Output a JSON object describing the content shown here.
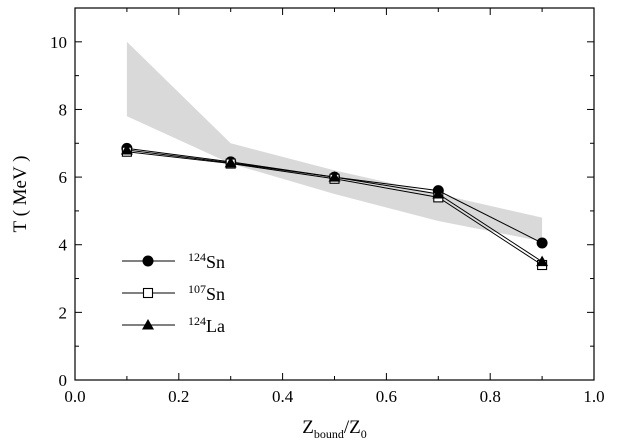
{
  "chart_data": {
    "type": "line",
    "xlabel_main": "Z",
    "xlabel_sub1": "bound",
    "xlabel_mid": "/Z",
    "xlabel_sub2": "0",
    "ylabel": "T ( MeV )",
    "xlim": [
      0.0,
      1.0
    ],
    "ylim": [
      0,
      11
    ],
    "xticks": [
      0.0,
      0.2,
      0.4,
      0.6,
      0.8,
      1.0
    ],
    "xtick_labels": [
      "0.0",
      "0.2",
      "0.4",
      "0.6",
      "0.8",
      "1.0"
    ],
    "yticks": [
      0,
      2,
      4,
      6,
      8,
      10
    ],
    "ytick_labels": [
      "0",
      "2",
      "4",
      "6",
      "8",
      "10"
    ],
    "x": [
      0.1,
      0.3,
      0.5,
      0.7,
      0.9
    ],
    "series": [
      {
        "name_sup": "124",
        "name_main": "Sn",
        "marker": "circle-filled",
        "values": [
          6.85,
          6.45,
          6.0,
          5.6,
          4.05
        ]
      },
      {
        "name_sup": "107",
        "name_main": "Sn",
        "marker": "square-open",
        "values": [
          6.75,
          6.4,
          5.95,
          5.4,
          3.4
        ]
      },
      {
        "name_sup": "124",
        "name_main": "La",
        "marker": "triangle-filled",
        "values": [
          6.8,
          6.42,
          6.0,
          5.5,
          3.5
        ]
      }
    ],
    "band": {
      "x": [
        0.1,
        0.3,
        0.5,
        0.7,
        0.9
      ],
      "upper": [
        10.0,
        7.0,
        6.2,
        5.5,
        4.8
      ],
      "lower": [
        7.8,
        6.4,
        5.5,
        4.7,
        4.1
      ]
    },
    "band_color": "#d9d9d9",
    "legend_position": "lower-left",
    "grid": false
  }
}
